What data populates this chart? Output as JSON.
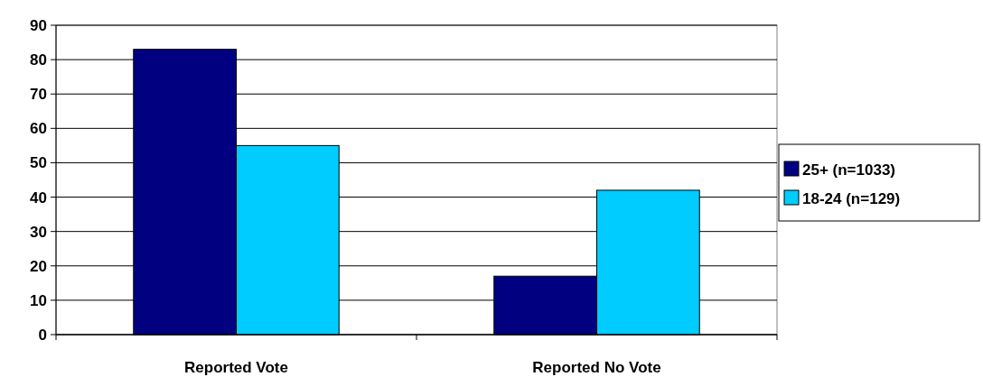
{
  "chart_data": {
    "type": "bar",
    "categories": [
      "Reported Vote",
      "Reported No Vote"
    ],
    "series": [
      {
        "name": "25+ (n=1033)",
        "color": "#000080",
        "values": [
          83,
          17
        ]
      },
      {
        "name": "18-24 (n=129)",
        "color": "#00ccff",
        "values": [
          55,
          42
        ]
      }
    ],
    "ylim": [
      0,
      90
    ],
    "yticks": [
      0,
      10,
      20,
      30,
      40,
      50,
      60,
      70,
      80,
      90
    ],
    "grid": "y",
    "legend": "right"
  }
}
